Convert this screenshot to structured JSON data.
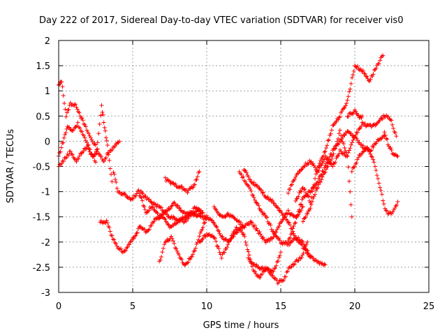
{
  "chart_data": {
    "type": "scatter",
    "title": "Day 222 of 2017, Sidereal Day-to-day VTEC variation (SDTVAR) for receiver vis0",
    "xlabel": "GPS time / hours",
    "ylabel": "SDTVAR / TECUs",
    "xlim": [
      0,
      25
    ],
    "ylim": [
      -3,
      2
    ],
    "xticks": [
      0,
      5,
      10,
      15,
      20,
      25
    ],
    "yticks": [
      -3,
      -2.5,
      -2,
      -1.5,
      -1,
      -0.5,
      0,
      0.5,
      1,
      1.5,
      2
    ],
    "grid": true,
    "marker": "+",
    "color": "#ff0000",
    "series": [
      {
        "x": [
          0,
          0.2,
          0.5,
          0.8,
          1.2,
          1.7,
          2.1,
          2.5,
          3.0,
          3.4,
          3.8,
          4.1
        ],
        "y": [
          1.1,
          1.2,
          0.5,
          0.75,
          0.7,
          0.35,
          0.1,
          -0.1,
          -0.4,
          -0.2,
          -0.1,
          0.0
        ]
      },
      {
        "x": [
          0,
          0.3,
          0.6,
          0.9,
          1.3,
          1.7,
          2.1,
          2.5,
          2.9,
          3.1,
          3.3,
          3.6
        ],
        "y": [
          -0.3,
          0.0,
          0.3,
          0.2,
          0.35,
          0.1,
          -0.2,
          -0.4,
          0.7,
          0.3,
          -0.1,
          -0.8
        ]
      },
      {
        "x": [
          0,
          0.4,
          0.8,
          1.2,
          1.6,
          2.0,
          2.3,
          2.6
        ],
        "y": [
          -0.5,
          -0.35,
          -0.2,
          -0.4,
          -0.2,
          -0.1,
          -0.3,
          -0.2
        ]
      },
      {
        "x": [
          2.8,
          3.3,
          3.6,
          4.0,
          4.4,
          4.9,
          5.5,
          6.0,
          6.5,
          7.0,
          7.5,
          8.0,
          8.5,
          9.0,
          9.6
        ],
        "y": [
          -1.6,
          -1.6,
          -1.9,
          -2.1,
          -2.2,
          -2.0,
          -1.7,
          -1.8,
          -1.55,
          -1.5,
          -1.7,
          -1.6,
          -1.5,
          -1.45,
          -1.5
        ]
      },
      {
        "x": [
          3.7,
          4.0,
          4.4,
          4.9,
          5.4,
          5.9,
          6.3,
          6.8,
          7.3,
          7.8,
          8.3,
          8.8,
          9.3,
          9.8
        ],
        "y": [
          -0.6,
          -1.0,
          -1.05,
          -1.15,
          -1.0,
          -1.4,
          -1.3,
          -1.5,
          -1.4,
          -1.2,
          -1.4,
          -1.45,
          -1.3,
          -1.55
        ]
      },
      {
        "x": [
          5.5,
          6.0,
          6.5,
          7.0,
          7.5,
          8.0,
          8.5,
          9.0,
          9.5,
          10.0
        ],
        "y": [
          -1.0,
          -1.15,
          -1.25,
          -1.35,
          -1.5,
          -1.55,
          -1.6,
          -1.45,
          -1.35,
          -1.55
        ]
      },
      {
        "x": [
          7.2,
          7.7,
          8.2,
          8.7,
          9.2,
          9.5
        ],
        "y": [
          -0.75,
          -0.85,
          -0.9,
          -1.0,
          -0.85,
          -0.6
        ]
      },
      {
        "x": [
          6.8,
          7.2,
          7.6,
          8.0,
          8.5,
          9.0,
          9.5,
          10.0,
          10.5,
          11.0,
          11.5,
          12.0,
          12.5
        ],
        "y": [
          -2.4,
          -2.0,
          -1.9,
          -2.2,
          -2.45,
          -2.3,
          -1.9,
          -1.5,
          -1.6,
          -1.9,
          -2.0,
          -1.8,
          -1.7
        ]
      },
      {
        "x": [
          9.5,
          10.0,
          10.5,
          11.0,
          11.5,
          12.0,
          12.5,
          13.0,
          13.5,
          14.0,
          14.5,
          15.0
        ],
        "y": [
          -2.0,
          -1.85,
          -1.9,
          -2.3,
          -2.0,
          -1.7,
          -1.85,
          -2.4,
          -2.5,
          -2.55,
          -2.6,
          -2.2
        ]
      },
      {
        "x": [
          10.5,
          11.0,
          11.5,
          12.0,
          12.5,
          13.0,
          13.5,
          14.0,
          14.5,
          15.0,
          15.5,
          16.0,
          16.5
        ],
        "y": [
          -1.3,
          -1.5,
          -1.45,
          -1.55,
          -1.7,
          -1.6,
          -1.8,
          -2.0,
          -1.9,
          -1.6,
          -1.4,
          -1.5,
          -1.3
        ]
      },
      {
        "x": [
          12.2,
          12.6,
          13.0,
          13.5,
          14.0,
          14.5,
          15.0,
          15.5,
          16.0,
          16.5,
          17.0,
          17.5,
          18.0
        ],
        "y": [
          -0.6,
          -0.8,
          -1.0,
          -1.3,
          -1.5,
          -1.8,
          -2.0,
          -2.05,
          -1.9,
          -2.1,
          -2.3,
          -2.4,
          -2.45
        ]
      },
      {
        "x": [
          12.8,
          13.2,
          13.6,
          14.0,
          14.4,
          14.8,
          15.2,
          15.6,
          16.0,
          16.4,
          16.8
        ],
        "y": [
          -2.3,
          -2.6,
          -2.7,
          -2.5,
          -2.65,
          -2.8,
          -2.75,
          -2.5,
          -2.4,
          -2.3,
          -2.0
        ]
      },
      {
        "x": [
          12.5,
          13.0,
          13.5,
          14.0,
          14.5,
          15.0,
          15.5,
          16.0,
          16.5,
          17.0
        ],
        "y": [
          -0.55,
          -0.8,
          -0.9,
          -1.1,
          -1.2,
          -1.4,
          -1.6,
          -1.9,
          -2.0,
          -2.3
        ]
      },
      {
        "x": [
          15.5,
          16.0,
          16.5,
          17.0,
          17.5,
          18.0,
          18.5,
          19.0,
          19.5,
          20.0,
          20.5,
          21.0,
          21.5,
          22.0,
          22.4,
          22.8
        ],
        "y": [
          -1.0,
          -0.7,
          -0.5,
          -0.4,
          -0.6,
          -0.3,
          -0.5,
          -0.2,
          -0.3,
          0.1,
          0.35,
          0.3,
          0.35,
          0.5,
          0.45,
          0.1
        ]
      },
      {
        "x": [
          15.5,
          16.0,
          16.5,
          17.0,
          17.5,
          18.0,
          18.5,
          19.0,
          19.5,
          20.0,
          20.5,
          21.0,
          21.5,
          22.0
        ],
        "y": [
          -2.0,
          -1.6,
          -1.1,
          -1.0,
          -0.8,
          -0.5,
          -0.2,
          0.0,
          0.2,
          0.1,
          -0.1,
          -0.2,
          0.0,
          0.1
        ]
      },
      {
        "x": [
          16.0,
          16.5,
          17.0,
          17.5,
          18.0,
          18.5,
          19.0,
          19.5,
          20.0,
          20.5,
          21.0,
          21.5,
          21.9
        ],
        "y": [
          -1.2,
          -0.9,
          -1.2,
          -0.5,
          -0.2,
          0.3,
          0.5,
          0.8,
          1.5,
          1.4,
          1.2,
          1.5,
          1.7
        ]
      },
      {
        "x": [
          16.5,
          17.0,
          17.5,
          18.0,
          18.5,
          19.0,
          19.5,
          19.8
        ],
        "y": [
          -1.6,
          -1.3,
          -0.9,
          -0.6,
          -0.3,
          0.2,
          -0.3,
          -1.5
        ]
      },
      {
        "x": [
          19.8,
          20.3,
          20.8,
          21.3,
          21.7,
          22.1,
          22.5,
          22.9
        ],
        "y": [
          -0.6,
          -0.3,
          -0.1,
          -0.4,
          -0.9,
          -1.4,
          -1.45,
          -1.2
        ]
      },
      {
        "x": [
          19.5,
          20.0,
          20.3,
          20.5
        ],
        "y": [
          0.5,
          0.6,
          0.45,
          0.5
        ]
      },
      {
        "x": [
          22.0,
          22.3,
          22.6,
          22.9
        ],
        "y": [
          0.2,
          -0.1,
          -0.25,
          -0.3
        ]
      }
    ]
  }
}
